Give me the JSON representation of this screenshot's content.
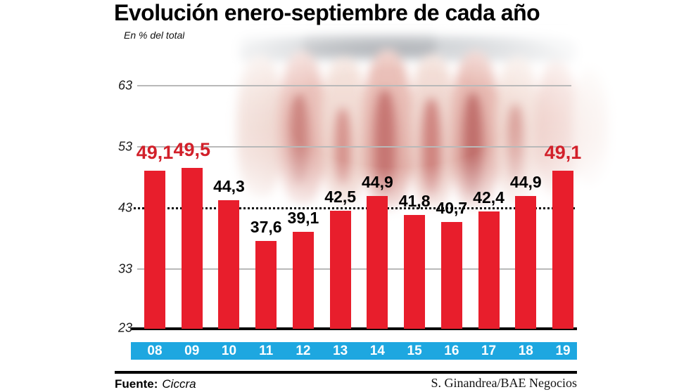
{
  "header": {
    "title": "Evolución enero-septiembre de cada año",
    "subtitle": "En % del total"
  },
  "footer": {
    "source_label": "Fuente:",
    "source_name": "Ciccra",
    "credit": "S. Ginandrea/BAE Negocios"
  },
  "colors": {
    "bar": "#e81e2c",
    "highlight_label": "#d2202a",
    "value_label": "#000000",
    "axis_strip": "#1ea7e0",
    "strip_text": "#ffffff",
    "grid": "#b9b9b9",
    "reference_line": "#0b0b0b",
    "baseline": "#0a0a0a"
  },
  "chart_data": {
    "type": "bar",
    "title": "Evolución enero-septiembre de cada año",
    "subtitle": "En % del total",
    "categories": [
      "08",
      "09",
      "10",
      "11",
      "12",
      "13",
      "14",
      "15",
      "16",
      "17",
      "18",
      "19"
    ],
    "values": [
      49.1,
      49.5,
      44.3,
      37.6,
      39.1,
      42.5,
      44.9,
      41.8,
      40.7,
      42.4,
      44.9,
      49.1
    ],
    "value_labels": [
      "49,1",
      "49,5",
      "44,3",
      "37,6",
      "39,1",
      "42,5",
      "44,9",
      "41,8",
      "40,7",
      "42,4",
      "44,9",
      "49,1"
    ],
    "highlighted_indices": [
      0,
      1,
      11
    ],
    "y_ticks": [
      63,
      53,
      43,
      33,
      23
    ],
    "y_tick_labels": [
      "63",
      "53",
      "43",
      "33",
      "23"
    ],
    "ylim": [
      23,
      67
    ],
    "reference_line": 43,
    "grid": "horizontal",
    "legend": "none",
    "xlabel": "",
    "ylabel": "En % del total"
  }
}
